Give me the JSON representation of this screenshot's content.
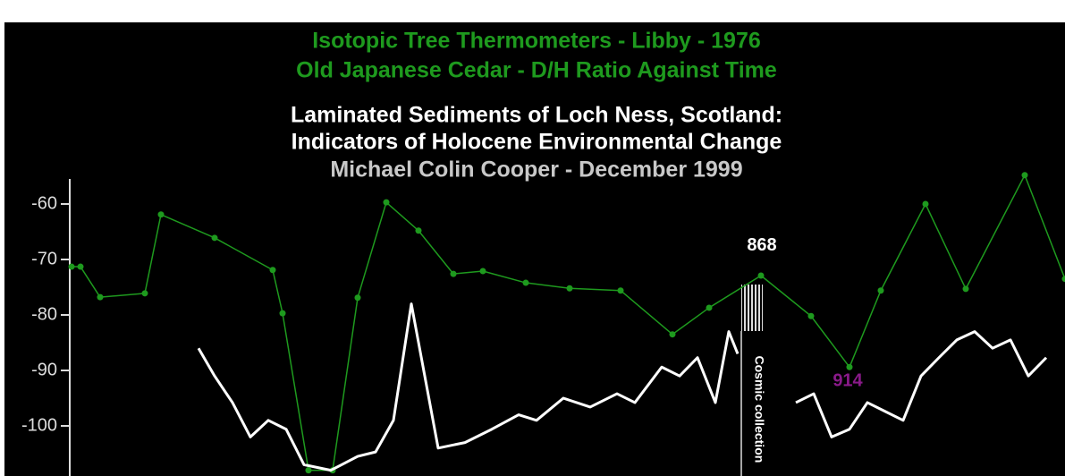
{
  "chart_data": {
    "type": "line",
    "titles": [
      "Isotopic Tree Thermometers - Libby - 1976",
      "Old Japanese Cedar - D/H Ratio Against Time",
      "Laminated Sediments of Loch Ness, Scotland:",
      "Indicators of Holocene Environmental Change",
      "Michael Colin Cooper - December 1999"
    ],
    "title_colors": [
      "#1e9a1e",
      "#1e9a1e",
      "#ffffff",
      "#ffffff",
      "#c8c8c8"
    ],
    "ylim": [
      -109,
      -54
    ],
    "yticks": [
      -60,
      -70,
      -80,
      -90,
      -100
    ],
    "xlim": [
      0,
      1111
    ],
    "series": [
      {
        "color": "#1e9a1e",
        "markers": true,
        "x": [
          0,
          10,
          32,
          82,
          100,
          160,
          225,
          236,
          265,
          292,
          320,
          352,
          388,
          427,
          460,
          508,
          557,
          614,
          672,
          713,
          771,
          827,
          870,
          905,
          955,
          1000,
          1066,
          1111
        ],
        "values": [
          -71.3,
          -71.3,
          -76.8,
          -76.1,
          -61.9,
          -66.1,
          -71.9,
          -79.7,
          -108,
          -108,
          -76.9,
          -59.7,
          -64.8,
          -72.6,
          -72.1,
          -74.2,
          -75.2,
          -75.6,
          -83.5,
          -78.7,
          -72.9,
          -80.2,
          -89.4,
          -75.6,
          -60,
          -75.3,
          -54.8,
          -73.5
        ]
      },
      {
        "color": "#ffffff",
        "markers": false,
        "x": [
          142,
          160,
          180,
          200,
          220,
          240,
          260,
          290,
          320,
          340,
          360,
          380,
          395,
          410,
          440,
          470,
          500,
          520,
          550,
          580,
          610,
          630,
          660,
          680,
          700,
          720,
          735,
          745,
          780,
          810,
          830,
          850,
          870,
          890,
          910,
          930,
          950,
          970,
          990,
          1010,
          1030,
          1050,
          1070,
          1090
        ],
        "values": [
          -86,
          -91,
          -95.8,
          -102,
          -99,
          -100.6,
          -107,
          -108,
          -105.5,
          -104.7,
          -99,
          -78,
          -91,
          -104,
          -103,
          -100.6,
          -98,
          -99,
          -95,
          -96.6,
          -94.2,
          -95.8,
          -89.4,
          -91,
          -87.7,
          -95.8,
          -83,
          -87,
          null,
          -95.8,
          -94.2,
          -102,
          -100.6,
          -95.8,
          -97.4,
          -99,
          -91,
          -87.7,
          -84.5,
          -83,
          -86,
          -84.5,
          -91,
          -87.7
        ]
      }
    ],
    "annotations": [
      {
        "text": "868",
        "color": "#ffffff",
        "x": 772,
        "y": -67.5
      },
      {
        "text": "914",
        "color": "#8a1a8a",
        "x": 868,
        "y": -92
      },
      {
        "text": "Cosmic collection",
        "color": "#ffffff",
        "x": 768,
        "y": -97,
        "rotate": 90
      }
    ]
  }
}
